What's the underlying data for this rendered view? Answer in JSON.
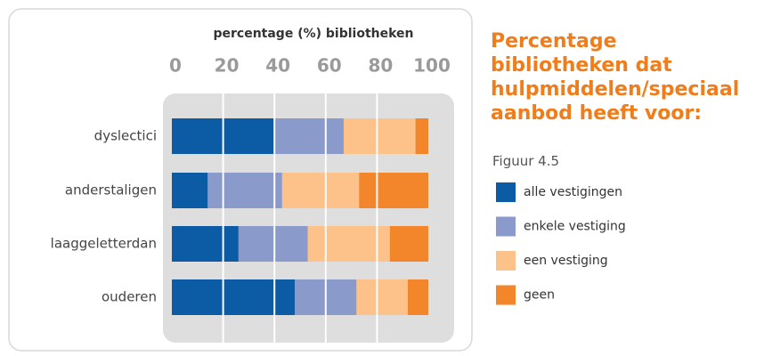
{
  "chart_data": {
    "type": "stacked-bar-horizontal",
    "title": "Percentage bibliotheken dat hulpmiddelen/speciaal aanbod heeft voor:",
    "subtitle": "Figuur 4.5",
    "x_label": "percentage (%) bibliotheken",
    "categories": [
      "dyslectici",
      "anderstaligen",
      "laaggeletterdan",
      "ouderen"
    ],
    "series": [
      {
        "name": "alle vestigingen",
        "color": "#0b5ba5",
        "values": [
          40,
          14,
          26,
          48
        ]
      },
      {
        "name": "enkele vestiging",
        "color": "#8a9acb",
        "values": [
          27,
          29,
          27,
          24
        ]
      },
      {
        "name": "een vestiging",
        "color": "#fdc28a",
        "values": [
          28,
          30,
          32,
          20
        ]
      },
      {
        "name": "geen",
        "color": "#f3862a",
        "values": [
          5,
          27,
          15,
          8
        ]
      }
    ],
    "xlim": [
      0,
      100
    ],
    "xticks": [
      0,
      20,
      40,
      60,
      80,
      100
    ],
    "grid": true
  }
}
